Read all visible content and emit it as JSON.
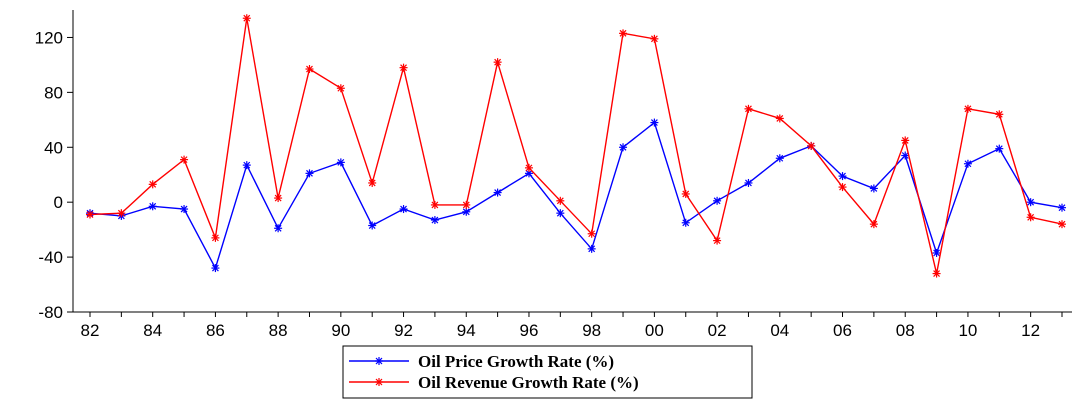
{
  "chart_data": {
    "type": "line",
    "x_tick_labels": [
      "82",
      "84",
      "86",
      "88",
      "90",
      "92",
      "94",
      "96",
      "98",
      "00",
      "02",
      "04",
      "06",
      "08",
      "10",
      "12"
    ],
    "x": [
      1982,
      1983,
      1984,
      1985,
      1986,
      1987,
      1988,
      1989,
      1990,
      1991,
      1992,
      1993,
      1994,
      1995,
      1996,
      1997,
      1998,
      1999,
      2000,
      2001,
      2002,
      2003,
      2004,
      2005,
      2006,
      2007,
      2008,
      2009,
      2010,
      2011,
      2012,
      2013
    ],
    "ylim": [
      -80,
      140
    ],
    "y_ticks": [
      -80,
      -40,
      0,
      40,
      80,
      120
    ],
    "y_tick_labels": [
      "-80",
      "-40",
      "0",
      "40",
      "80",
      "120"
    ],
    "grid": false,
    "legend_position": "bottom-center",
    "series": [
      {
        "name": "Oil Price Growth Rate (%)",
        "color": "#0000ff",
        "values": [
          -8,
          -10,
          -3,
          -5,
          -48,
          27,
          -19,
          21,
          29,
          -17,
          -5,
          -13,
          -7,
          7,
          21,
          -8,
          -34,
          40,
          58,
          -15,
          1,
          14,
          32,
          41,
          19,
          10,
          34,
          -37,
          28,
          39,
          0,
          -4
        ]
      },
      {
        "name": "Oil Revenue Growth Rate (%)",
        "color": "#ff0000",
        "values": [
          -9,
          -8,
          13,
          31,
          -26,
          134,
          3,
          97,
          83,
          14,
          98,
          -2,
          -2,
          102,
          25,
          1,
          -23,
          123,
          119,
          6,
          -28,
          68,
          61,
          41,
          11,
          -16,
          45,
          -52,
          68,
          64,
          -11,
          -16
        ]
      }
    ]
  }
}
